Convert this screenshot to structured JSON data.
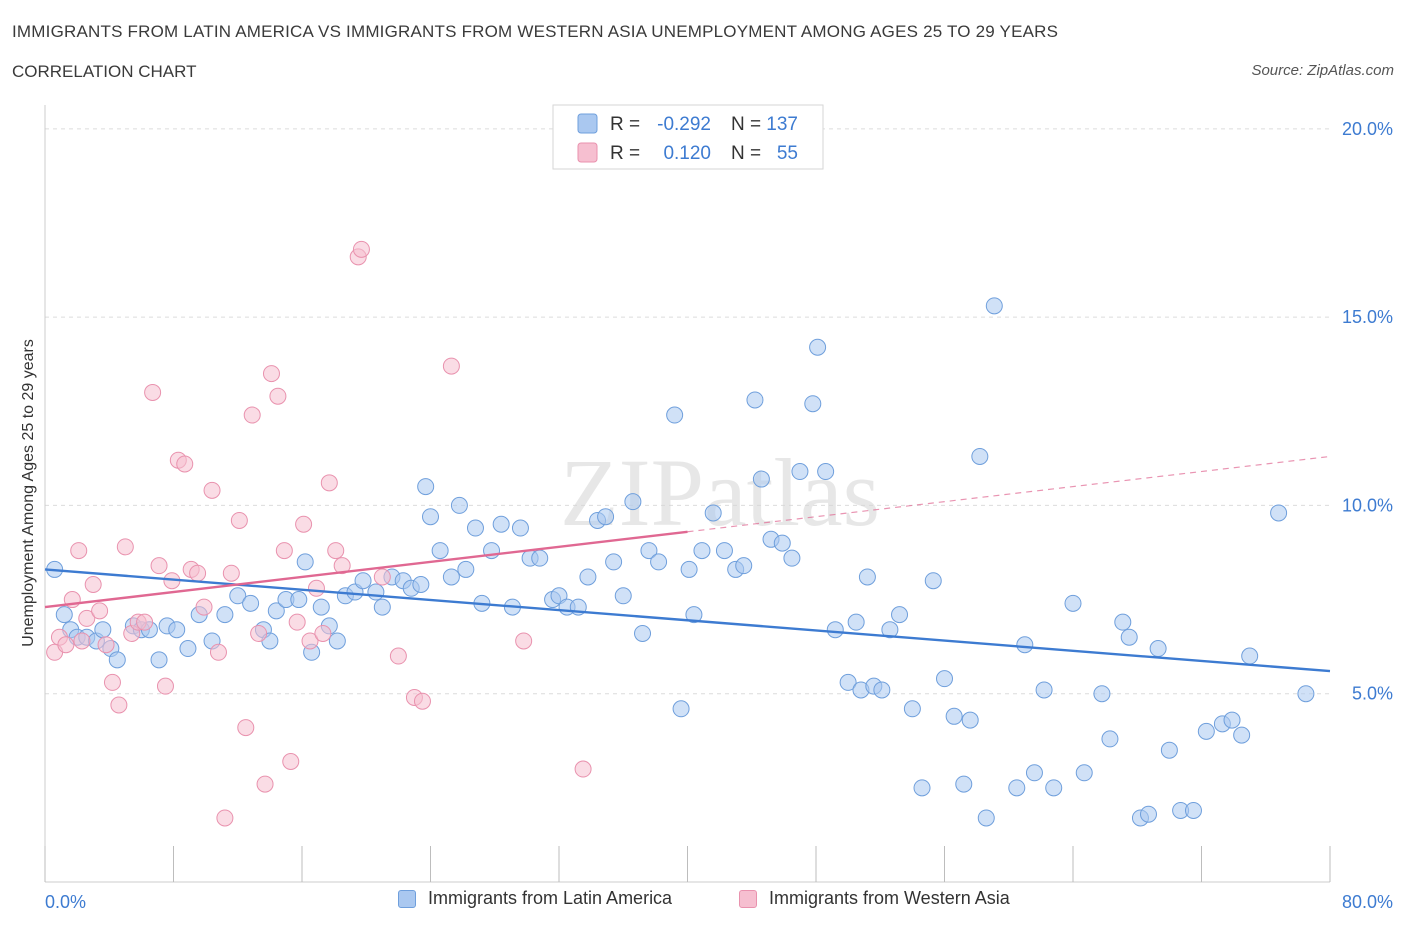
{
  "header": {
    "title": "IMMIGRANTS FROM LATIN AMERICA VS IMMIGRANTS FROM WESTERN ASIA UNEMPLOYMENT AMONG AGES 25 TO 29 YEARS",
    "subtitle": "CORRELATION CHART",
    "source": "Source: ZipAtlas.com"
  },
  "watermark": "ZIPatlas",
  "colors": {
    "blue_fill": "#aac8f0",
    "blue_stroke": "#6f9fdc",
    "blue_line": "#3d7bd1",
    "pink_fill": "#f6bfd0",
    "pink_stroke": "#e992ae",
    "pink_line": "#e06892",
    "tick_label": "#3d7bd1",
    "grid": "#dcdcdc"
  },
  "legend_top": {
    "rows": [
      {
        "r_label": "R =",
        "r_value": "-0.292",
        "n_label": "N =",
        "n_value": "137"
      },
      {
        "r_label": "R =",
        "r_value": "0.120",
        "n_label": "N =",
        "n_value": "55"
      }
    ]
  },
  "legend_bottom": {
    "items": [
      "Immigrants from Latin America",
      "Immigrants from Western Asia"
    ]
  },
  "chart_data": {
    "type": "scatter",
    "ylabel": "Unemployment Among Ages 25 to 29 years",
    "xlim": [
      0,
      80
    ],
    "ylim": [
      0,
      20.5
    ],
    "x_tick_labels": [
      {
        "value": 0,
        "label": "0.0%"
      },
      {
        "value": 80,
        "label": "80.0%"
      }
    ],
    "y_tick_labels": [
      {
        "value": 5,
        "label": "5.0%"
      },
      {
        "value": 10,
        "label": "10.0%"
      },
      {
        "value": 15,
        "label": "15.0%"
      },
      {
        "value": 20,
        "label": "20.0%"
      }
    ],
    "series": [
      {
        "name": "Immigrants from Latin America",
        "color": "blue",
        "trend": {
          "x": [
            0,
            80
          ],
          "y": [
            8.3,
            5.6
          ]
        },
        "points": [
          [
            0.6,
            8.3
          ],
          [
            1.2,
            7.1
          ],
          [
            1.6,
            6.7
          ],
          [
            2.0,
            6.5
          ],
          [
            2.6,
            6.5
          ],
          [
            3.2,
            6.4
          ],
          [
            3.6,
            6.7
          ],
          [
            4.1,
            6.2
          ],
          [
            4.5,
            5.9
          ],
          [
            5.5,
            6.8
          ],
          [
            6.0,
            6.7
          ],
          [
            6.5,
            6.7
          ],
          [
            7.1,
            5.9
          ],
          [
            7.6,
            6.8
          ],
          [
            8.2,
            6.7
          ],
          [
            8.9,
            6.2
          ],
          [
            9.6,
            7.1
          ],
          [
            10.4,
            6.4
          ],
          [
            11.2,
            7.1
          ],
          [
            12.0,
            7.6
          ],
          [
            12.8,
            7.4
          ],
          [
            13.6,
            6.7
          ],
          [
            14.0,
            6.4
          ],
          [
            14.4,
            7.2
          ],
          [
            15.0,
            7.5
          ],
          [
            15.8,
            7.5
          ],
          [
            16.2,
            8.5
          ],
          [
            16.6,
            6.1
          ],
          [
            17.2,
            7.3
          ],
          [
            17.7,
            6.8
          ],
          [
            18.2,
            6.4
          ],
          [
            18.7,
            7.6
          ],
          [
            19.3,
            7.7
          ],
          [
            19.8,
            8.0
          ],
          [
            20.6,
            7.7
          ],
          [
            21.0,
            7.3
          ],
          [
            21.6,
            8.1
          ],
          [
            22.3,
            8.0
          ],
          [
            22.8,
            7.8
          ],
          [
            23.4,
            7.9
          ],
          [
            23.7,
            10.5
          ],
          [
            24.0,
            9.7
          ],
          [
            24.6,
            8.8
          ],
          [
            25.3,
            8.1
          ],
          [
            25.8,
            10.0
          ],
          [
            26.2,
            8.3
          ],
          [
            26.8,
            9.4
          ],
          [
            27.2,
            7.4
          ],
          [
            27.8,
            8.8
          ],
          [
            28.4,
            9.5
          ],
          [
            29.1,
            7.3
          ],
          [
            29.6,
            9.4
          ],
          [
            30.2,
            8.6
          ],
          [
            30.8,
            8.6
          ],
          [
            31.6,
            7.5
          ],
          [
            32.0,
            7.6
          ],
          [
            32.5,
            7.3
          ],
          [
            33.2,
            7.3
          ],
          [
            33.8,
            8.1
          ],
          [
            34.4,
            9.6
          ],
          [
            34.9,
            9.7
          ],
          [
            35.4,
            8.5
          ],
          [
            36.0,
            7.6
          ],
          [
            36.6,
            10.1
          ],
          [
            37.2,
            6.6
          ],
          [
            37.6,
            8.8
          ],
          [
            38.2,
            8.5
          ],
          [
            39.2,
            12.4
          ],
          [
            39.6,
            4.6
          ],
          [
            40.1,
            8.3
          ],
          [
            40.4,
            7.1
          ],
          [
            40.9,
            8.8
          ],
          [
            41.6,
            9.8
          ],
          [
            42.3,
            8.8
          ],
          [
            43.0,
            8.3
          ],
          [
            43.5,
            8.4
          ],
          [
            44.2,
            12.8
          ],
          [
            44.6,
            10.7
          ],
          [
            45.2,
            9.1
          ],
          [
            45.9,
            9.0
          ],
          [
            46.5,
            8.6
          ],
          [
            47.0,
            10.9
          ],
          [
            47.8,
            12.7
          ],
          [
            48.1,
            14.2
          ],
          [
            48.6,
            10.9
          ],
          [
            49.2,
            6.7
          ],
          [
            50.0,
            5.3
          ],
          [
            50.5,
            6.9
          ],
          [
            50.8,
            5.1
          ],
          [
            51.2,
            8.1
          ],
          [
            51.6,
            5.2
          ],
          [
            52.1,
            5.1
          ],
          [
            52.6,
            6.7
          ],
          [
            53.2,
            7.1
          ],
          [
            54.0,
            4.6
          ],
          [
            54.6,
            2.5
          ],
          [
            55.3,
            8.0
          ],
          [
            56.0,
            5.4
          ],
          [
            56.6,
            4.4
          ],
          [
            57.2,
            2.6
          ],
          [
            57.6,
            4.3
          ],
          [
            58.2,
            11.3
          ],
          [
            58.6,
            1.7
          ],
          [
            59.1,
            15.3
          ],
          [
            60.5,
            2.5
          ],
          [
            61.0,
            6.3
          ],
          [
            61.6,
            2.9
          ],
          [
            62.2,
            5.1
          ],
          [
            62.8,
            2.5
          ],
          [
            64.0,
            7.4
          ],
          [
            64.7,
            2.9
          ],
          [
            65.8,
            5.0
          ],
          [
            66.3,
            3.8
          ],
          [
            67.1,
            6.9
          ],
          [
            67.5,
            6.5
          ],
          [
            68.2,
            1.7
          ],
          [
            68.7,
            1.8
          ],
          [
            69.3,
            6.2
          ],
          [
            70.0,
            3.5
          ],
          [
            70.7,
            1.9
          ],
          [
            71.5,
            1.9
          ],
          [
            72.3,
            4.0
          ],
          [
            73.3,
            4.2
          ],
          [
            73.9,
            4.3
          ],
          [
            74.5,
            3.9
          ],
          [
            75.0,
            6.0
          ],
          [
            76.8,
            9.8
          ],
          [
            78.5,
            5.0
          ]
        ]
      },
      {
        "name": "Immigrants from Western Asia",
        "color": "pink",
        "trend": {
          "x": [
            0,
            40
          ],
          "y": [
            7.3,
            9.3
          ]
        },
        "trend_extension": {
          "x": [
            40,
            80
          ],
          "y": [
            9.3,
            11.3
          ]
        },
        "points": [
          [
            0.6,
            6.1
          ],
          [
            0.9,
            6.5
          ],
          [
            1.3,
            6.3
          ],
          [
            1.7,
            7.5
          ],
          [
            2.1,
            8.8
          ],
          [
            2.6,
            7.0
          ],
          [
            3.0,
            7.9
          ],
          [
            3.4,
            7.2
          ],
          [
            3.8,
            6.3
          ],
          [
            4.2,
            5.3
          ],
          [
            4.6,
            4.7
          ],
          [
            5.0,
            8.9
          ],
          [
            5.4,
            6.6
          ],
          [
            5.8,
            6.9
          ],
          [
            6.2,
            6.9
          ],
          [
            6.7,
            13.0
          ],
          [
            7.1,
            8.4
          ],
          [
            7.5,
            5.2
          ],
          [
            7.9,
            8.0
          ],
          [
            8.3,
            11.2
          ],
          [
            8.7,
            11.1
          ],
          [
            9.1,
            8.3
          ],
          [
            9.5,
            8.2
          ],
          [
            9.9,
            7.3
          ],
          [
            10.4,
            10.4
          ],
          [
            10.8,
            6.1
          ],
          [
            11.2,
            1.7
          ],
          [
            11.6,
            8.2
          ],
          [
            12.1,
            9.6
          ],
          [
            12.5,
            4.1
          ],
          [
            12.9,
            12.4
          ],
          [
            13.3,
            6.6
          ],
          [
            13.7,
            2.6
          ],
          [
            14.1,
            13.5
          ],
          [
            14.5,
            12.9
          ],
          [
            14.9,
            8.8
          ],
          [
            15.3,
            3.2
          ],
          [
            15.7,
            6.9
          ],
          [
            16.1,
            9.5
          ],
          [
            16.5,
            6.4
          ],
          [
            16.9,
            7.8
          ],
          [
            17.3,
            6.6
          ],
          [
            17.7,
            10.6
          ],
          [
            18.1,
            8.8
          ],
          [
            18.5,
            8.4
          ],
          [
            19.5,
            16.6
          ],
          [
            19.7,
            16.8
          ],
          [
            21.0,
            8.1
          ],
          [
            22.0,
            6.0
          ],
          [
            23.0,
            4.9
          ],
          [
            23.5,
            4.8
          ],
          [
            25.3,
            13.7
          ],
          [
            29.8,
            6.4
          ],
          [
            33.5,
            3.0
          ],
          [
            2.3,
            6.4
          ]
        ]
      }
    ]
  }
}
